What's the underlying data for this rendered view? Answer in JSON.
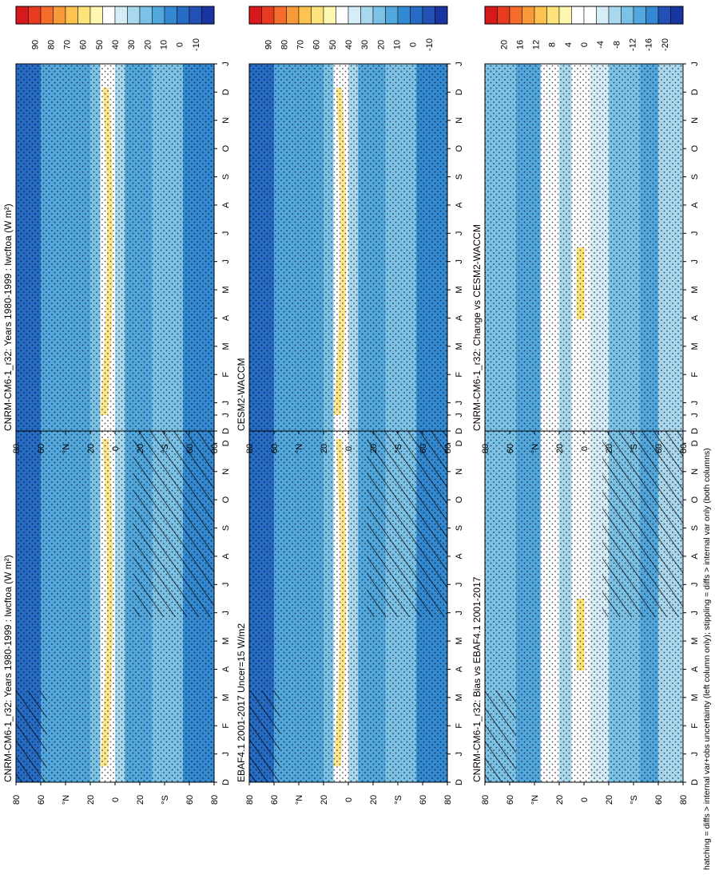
{
  "figure": {
    "caption": "hatching = diffs > internal var+obs uncertainty (left column only); stippling = diffs > internal var only (both columns)"
  },
  "colors": {
    "scale_abs": [
      "#d7191c",
      "#e83a1f",
      "#f46d2a",
      "#f99a3a",
      "#fdc24f",
      "#fde37a",
      "#fff7b0",
      "#ffffff",
      "#d6ecf6",
      "#a9d7ee",
      "#7cc1e6",
      "#52a7dd",
      "#348ad2",
      "#276cc4",
      "#2350b4",
      "#1a34a2"
    ],
    "scale_diff": [
      "#d7191c",
      "#e83a1f",
      "#f46d2a",
      "#f99a3a",
      "#fdc24f",
      "#fde37a",
      "#fff7b0",
      "#ffffff",
      "#ffffff",
      "#d6ecf6",
      "#a9d7ee",
      "#7cc1e6",
      "#52a7dd",
      "#348ad2",
      "#2350b4",
      "#1a34a2"
    ]
  },
  "chart_data": [
    {
      "id": "p1",
      "type": "heatmap",
      "title": "CNRM-CM6-1_r32: Years 1980-1999 : lwcftoa (W m²)",
      "x_ticks": [
        "D",
        "J",
        "F",
        "M",
        "A",
        "M",
        "J",
        "J",
        "A",
        "S",
        "O",
        "N",
        "D",
        "J"
      ],
      "y_ticks": [
        "80",
        "60",
        "°N",
        "20",
        "0",
        "20",
        "°S",
        "60",
        "80"
      ],
      "colorbar_ticks": [
        "90",
        "80",
        "70",
        "60",
        "50",
        "40",
        "30",
        "20",
        "10",
        "0",
        "-10"
      ],
      "scale": "abs",
      "hatching": true,
      "stippling": true
    },
    {
      "id": "p2",
      "type": "heatmap",
      "title": "CNRM-CM6-1_r32: Years 1980-1999 : lwcftoa (W m²)",
      "x_ticks": [
        "D",
        "J",
        "F",
        "M",
        "A",
        "M",
        "J",
        "J",
        "A",
        "S",
        "O",
        "N",
        "D",
        "J"
      ],
      "y_ticks": [
        "80",
        "60",
        "°N",
        "20",
        "0",
        "20",
        "°S",
        "60",
        "80"
      ],
      "colorbar_ticks": [
        "90",
        "80",
        "70",
        "60",
        "50",
        "40",
        "30",
        "20",
        "10",
        "0",
        "-10"
      ],
      "scale": "abs",
      "hatching": false,
      "stippling": true
    },
    {
      "id": "p3",
      "type": "heatmap",
      "title": "EBAF4.1 2001-2017 Uncer=15 W/m2",
      "x_ticks": [
        "D",
        "J",
        "F",
        "M",
        "A",
        "M",
        "J",
        "J",
        "A",
        "S",
        "O",
        "N",
        "D",
        "J"
      ],
      "y_ticks": [
        "80",
        "60",
        "°N",
        "20",
        "0",
        "20",
        "°S",
        "60",
        "80"
      ],
      "colorbar_ticks": [
        "90",
        "80",
        "70",
        "60",
        "50",
        "40",
        "30",
        "20",
        "10",
        "0",
        "-10"
      ],
      "scale": "abs",
      "hatching": true,
      "stippling": true
    },
    {
      "id": "p4",
      "type": "heatmap",
      "title": "CESM2-WACCM",
      "x_ticks": [
        "D",
        "J",
        "F",
        "M",
        "A",
        "M",
        "J",
        "J",
        "A",
        "S",
        "O",
        "N",
        "D",
        "J"
      ],
      "y_ticks": [
        "80",
        "60",
        "°N",
        "20",
        "0",
        "20",
        "°S",
        "60",
        "80"
      ],
      "colorbar_ticks": [
        "90",
        "80",
        "70",
        "60",
        "50",
        "40",
        "30",
        "20",
        "10",
        "0",
        "-10"
      ],
      "scale": "abs",
      "hatching": false,
      "stippling": true
    },
    {
      "id": "p5",
      "type": "heatmap",
      "title": "CNRM-CM6-1_r32: Bias vs EBAF4.1 2001-2017",
      "x_ticks": [
        "D",
        "J",
        "F",
        "M",
        "A",
        "M",
        "J",
        "J",
        "A",
        "S",
        "O",
        "N",
        "D",
        "J"
      ],
      "y_ticks": [
        "80",
        "60",
        "°N",
        "20",
        "0",
        "20",
        "°S",
        "60",
        "80"
      ],
      "colorbar_ticks": [
        "20",
        "16",
        "12",
        "8",
        "4",
        "0",
        "-4",
        "-8",
        "-12",
        "-16",
        "-20"
      ],
      "scale": "diff",
      "hatching": true,
      "stippling": true
    },
    {
      "id": "p6",
      "type": "heatmap",
      "title": "CNRM-CM6-1_r32: Change vs CESM2-WACCM",
      "x_ticks": [
        "D",
        "J",
        "F",
        "M",
        "A",
        "M",
        "J",
        "J",
        "A",
        "S",
        "O",
        "N",
        "D",
        "J"
      ],
      "y_ticks": [
        "80",
        "60",
        "°N",
        "20",
        "0",
        "20",
        "°S",
        "60",
        "80"
      ],
      "colorbar_ticks": [
        "20",
        "16",
        "12",
        "8",
        "4",
        "0",
        "-4",
        "-8",
        "-12",
        "-16",
        "-20"
      ],
      "scale": "diff",
      "hatching": false,
      "stippling": true
    }
  ]
}
